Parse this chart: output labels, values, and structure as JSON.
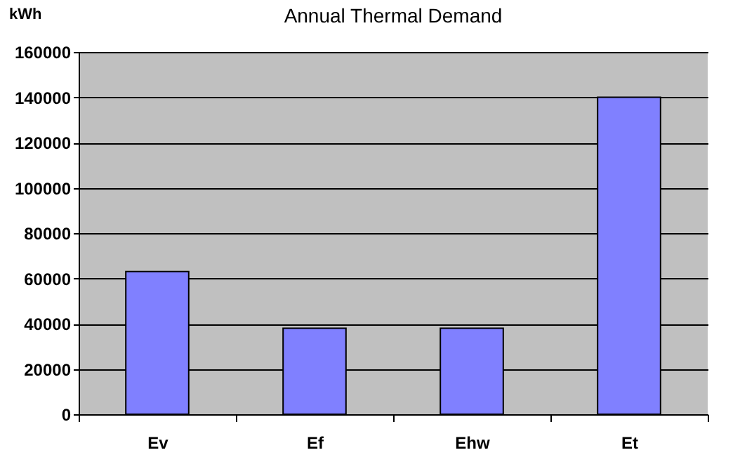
{
  "chart_data": {
    "type": "bar",
    "title": "Annual Thermal Demand",
    "ylabel": "kWh",
    "categories": [
      "Ev",
      "Ef",
      "Ehw",
      "Et"
    ],
    "values": [
      63000,
      38000,
      38000,
      140000
    ],
    "color": "#8080ff",
    "ylim": [
      0,
      160000
    ],
    "yticks": [
      0,
      20000,
      40000,
      60000,
      80000,
      100000,
      120000,
      140000,
      160000
    ],
    "grid": "y"
  }
}
